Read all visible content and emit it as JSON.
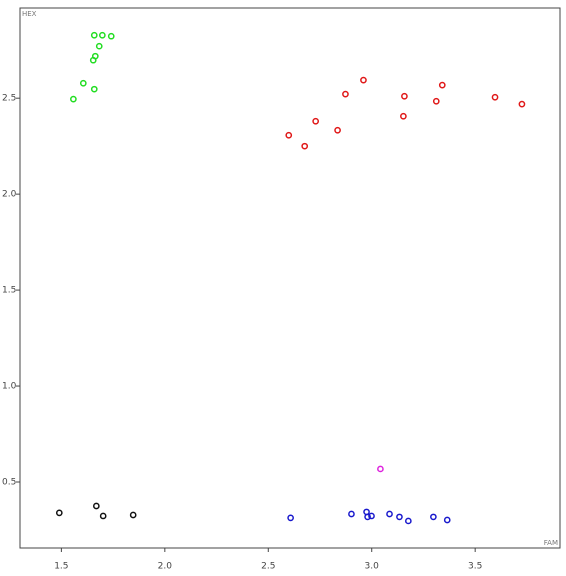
{
  "chart_data": {
    "type": "scatter",
    "xlabel": "FAM",
    "ylabel": "HEX",
    "xlim": [
      1.3,
      3.91
    ],
    "ylim": [
      0.156,
      2.97
    ],
    "xticks": [
      1.5,
      {
        "value": 2.0,
        "label": "2.0"
      },
      2.5,
      {
        "value": 3.0,
        "label": "3.0"
      },
      3.5
    ],
    "yticks": [
      0.5,
      {
        "value": 1.0,
        "label": "1.0"
      },
      1.5,
      {
        "value": 2.0,
        "label": "2.0"
      },
      2.5
    ],
    "series": [
      {
        "color": "#22dd22",
        "x": [
          1.659,
          1.698,
          1.741,
          1.683,
          1.664,
          1.654,
          1.606,
          1.558,
          1.659
        ],
        "y": [
          2.828,
          2.828,
          2.823,
          2.771,
          2.719,
          2.698,
          2.578,
          2.495,
          2.547
        ]
      },
      {
        "color": "#e01818",
        "x": [
          2.96,
          2.873,
          2.729,
          2.599,
          2.676,
          2.835,
          3.158,
          3.153,
          3.341,
          3.312,
          3.596,
          3.726
        ],
        "y": [
          2.594,
          2.521,
          2.38,
          2.307,
          2.25,
          2.333,
          2.51,
          2.406,
          2.568,
          2.484,
          2.505,
          2.469
        ]
      },
      {
        "color": "#111111",
        "x": [
          1.49,
          1.669,
          1.702,
          1.847
        ],
        "y": [
          0.339,
          0.375,
          0.323,
          0.328
        ]
      },
      {
        "color": "#dd22dd",
        "x": [
          3.042
        ],
        "y": [
          0.568
        ]
      },
      {
        "color": "#1818cc",
        "x": [
          2.608,
          2.902,
          2.975,
          2.98,
          2.999,
          3.086,
          3.134,
          3.177,
          3.298,
          3.365
        ],
        "y": [
          0.313,
          0.333,
          0.344,
          0.318,
          0.323,
          0.333,
          0.318,
          0.297,
          0.318,
          0.302
        ]
      }
    ]
  }
}
